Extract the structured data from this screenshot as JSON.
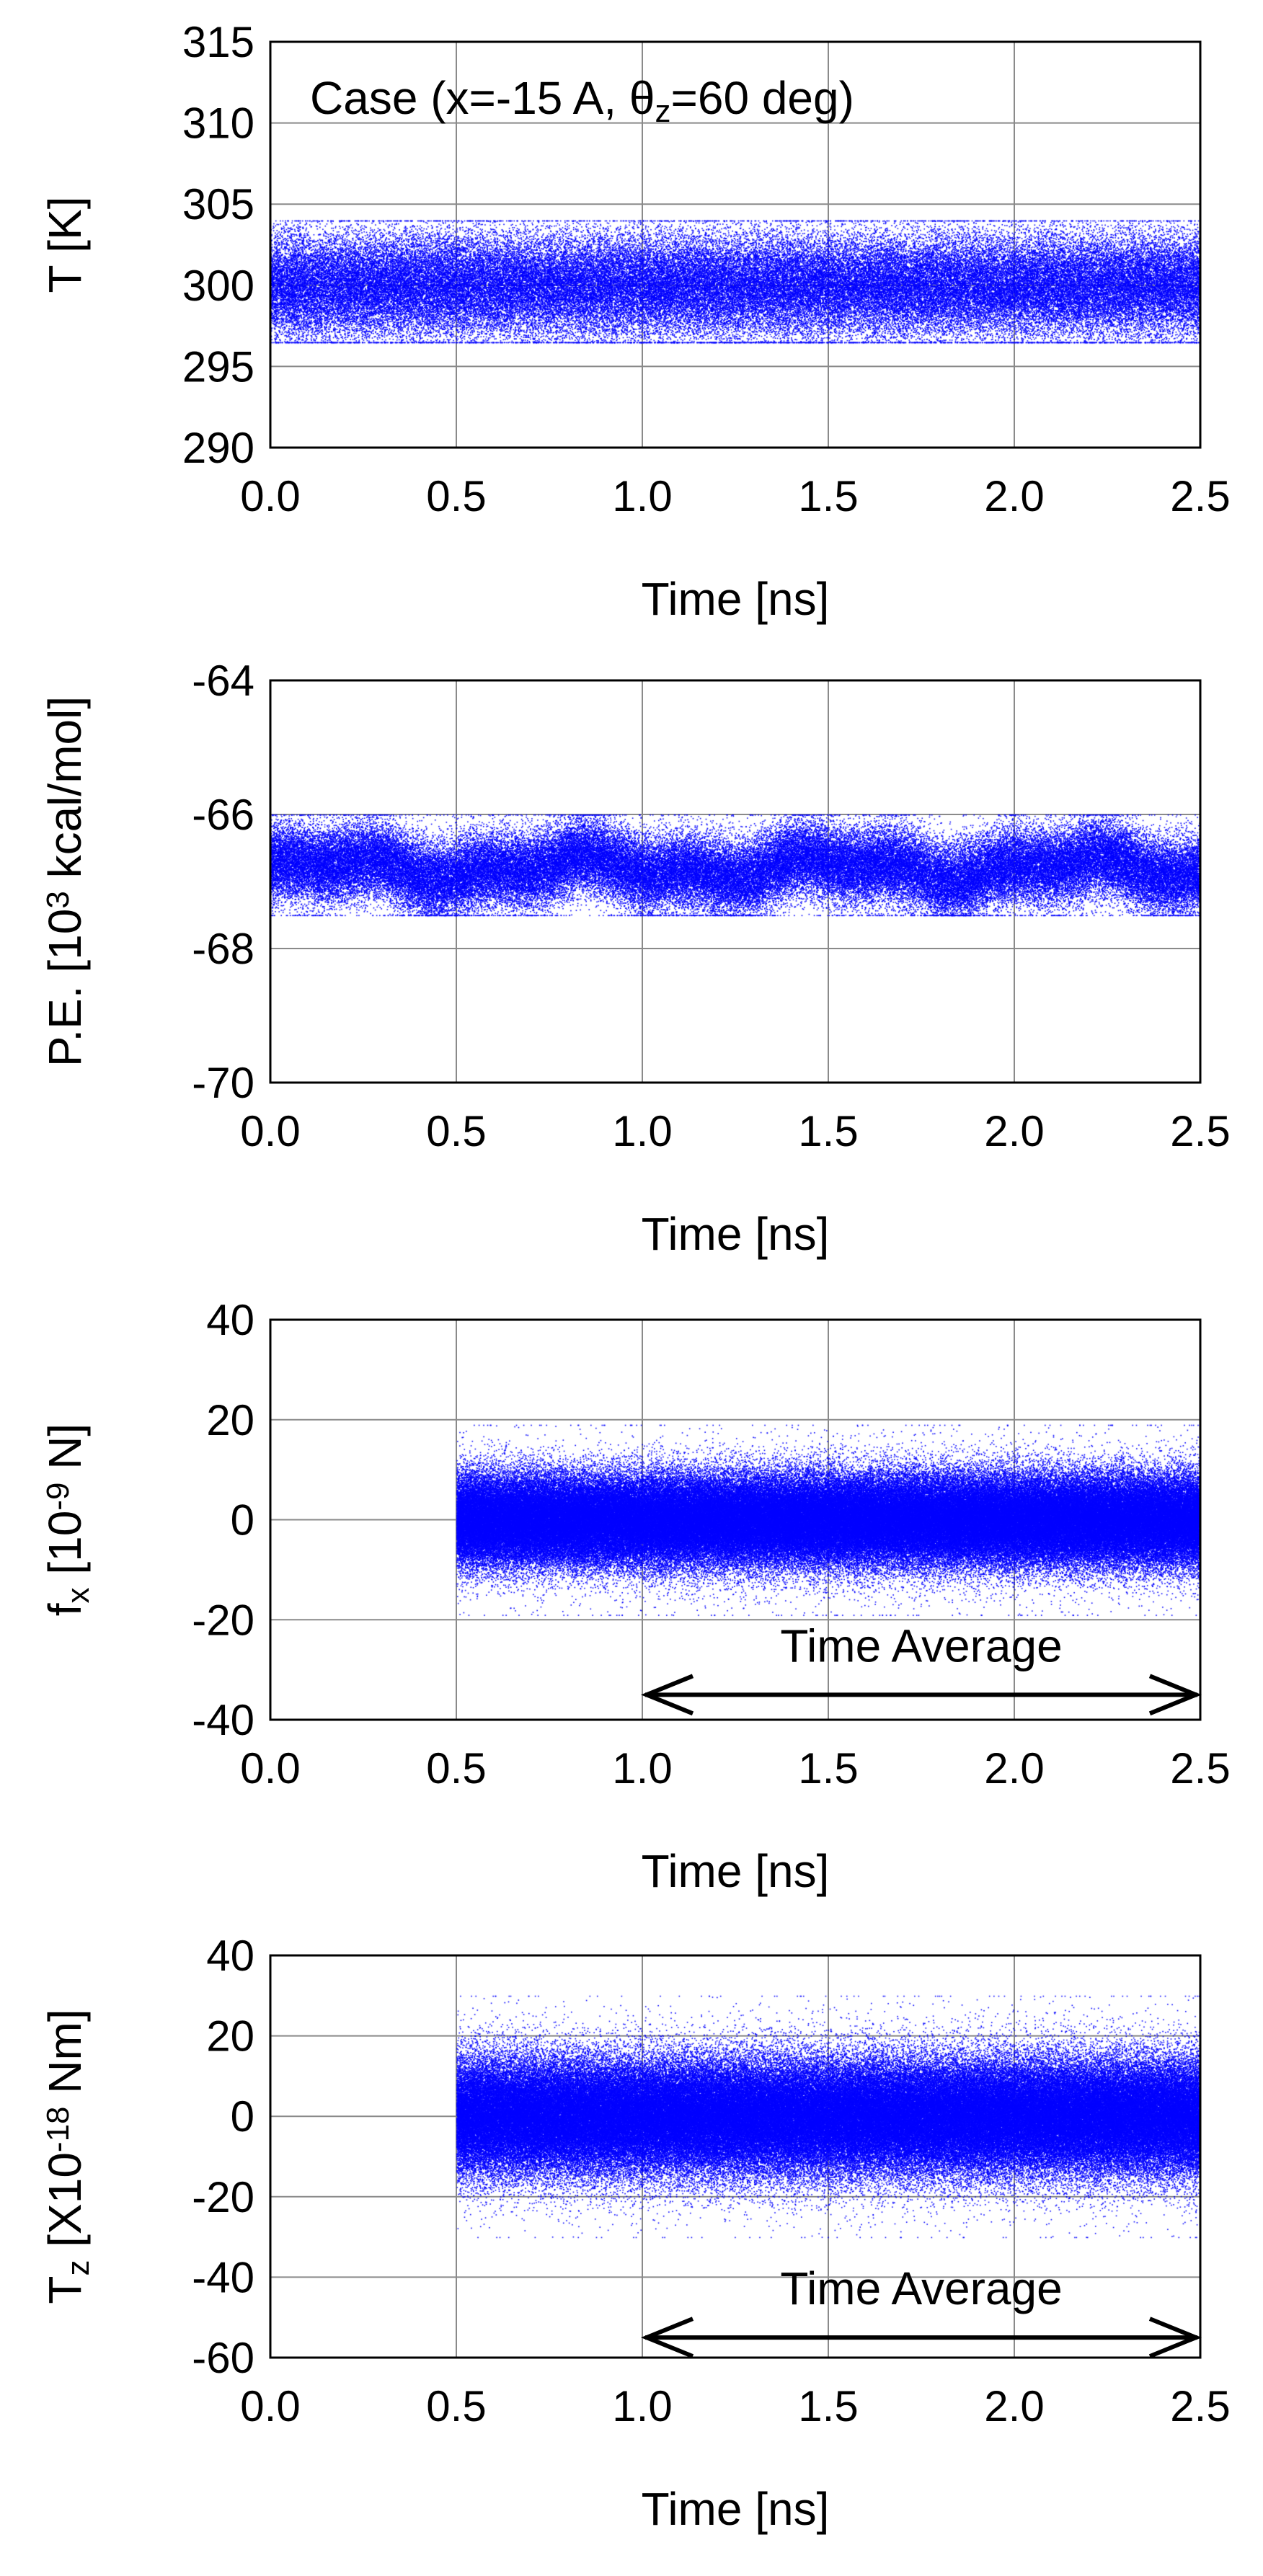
{
  "figure_caption": "Case (x=-15 A, θz=60 deg)",
  "colors": {
    "series": "#0000ff",
    "grid": "#8a8a8a",
    "axis": "#000000"
  },
  "chart_data": [
    {
      "id": "temperature",
      "type": "scatter",
      "title": "Case (x=-15 A, θz=60 deg)",
      "title_parts": {
        "pre": "Case (x=-15 A, θ",
        "sub": "z",
        "post": "=60 deg)"
      },
      "xlabel": "Time  [ns]",
      "ylabel": "T  [K]",
      "ylabel_parts": {
        "pre": "T  [K]",
        "sup": "",
        "sub": "",
        "post": ""
      },
      "xlim": [
        0.0,
        2.5
      ],
      "ylim": [
        290,
        315
      ],
      "xticks": [
        "0.0",
        "0.5",
        "1.0",
        "1.5",
        "2.0",
        "2.5"
      ],
      "yticks": [
        "290",
        "295",
        "300",
        "305",
        "310",
        "315"
      ],
      "series": [
        {
          "name": "T",
          "x_start": 0.0,
          "x_end": 2.5,
          "mean": 300,
          "spread": 1.6,
          "extreme_low": 296.5,
          "extreme_high": 304.0
        }
      ],
      "annotation": null
    },
    {
      "id": "potential-energy",
      "type": "scatter",
      "xlabel": "Time  [ns]",
      "ylabel": "P.E.  [10³ kcal/mol]",
      "ylabel_parts": {
        "pre": "P.E.  [10",
        "sup": "3",
        "sub": "",
        "post": " kcal/mol]"
      },
      "xlim": [
        0.0,
        2.5
      ],
      "ylim": [
        -70,
        -64
      ],
      "xticks": [
        "0.0",
        "0.5",
        "1.0",
        "1.5",
        "2.0",
        "2.5"
      ],
      "yticks": [
        "-70",
        "-68",
        "-66",
        "-64"
      ],
      "series": [
        {
          "name": "P.E.",
          "x_start": 0.0,
          "x_end": 2.5,
          "mean": -66.8,
          "spread": 0.28,
          "extreme_low": -67.5,
          "extreme_high": -66.0
        }
      ],
      "annotation": null
    },
    {
      "id": "force-x",
      "type": "scatter",
      "xlabel": "Time  [ns]",
      "ylabel": "fx  [10⁻⁹ N]",
      "ylabel_parts": {
        "pre": "f",
        "sub": "x",
        "mid": "  [10",
        "sup": "-9",
        "post": " N]"
      },
      "xlim": [
        0.0,
        2.5
      ],
      "ylim": [
        -40,
        40
      ],
      "xticks": [
        "0.0",
        "0.5",
        "1.0",
        "1.5",
        "2.0",
        "2.5"
      ],
      "yticks": [
        "-40",
        "-20",
        "0",
        "20",
        "40"
      ],
      "series": [
        {
          "name": "fx",
          "x_start": 0.5,
          "x_end": 2.5,
          "mean": 0,
          "spread": 4.5,
          "extreme_low": -19,
          "extreme_high": 19
        }
      ],
      "annotation": {
        "text": "Time Average",
        "x_start": 1.0,
        "x_end": 2.5,
        "y": -35
      }
    },
    {
      "id": "torque-z",
      "type": "scatter",
      "xlabel": "Time  [ns]",
      "ylabel": "Tz  [X10⁻¹⁸ Nm]",
      "ylabel_parts": {
        "pre": "T",
        "sub": "z",
        "mid": "  [X10",
        "sup": "-18",
        "post": " Nm]"
      },
      "xlim": [
        0.0,
        2.5
      ],
      "ylim": [
        -60,
        40
      ],
      "xticks": [
        "0.0",
        "0.5",
        "1.0",
        "1.5",
        "2.0",
        "2.5"
      ],
      "yticks": [
        "-60",
        "-40",
        "-20",
        "0",
        "20",
        "40"
      ],
      "series": [
        {
          "name": "Tz",
          "x_start": 0.5,
          "x_end": 2.5,
          "mean": 0,
          "spread": 7.0,
          "extreme_low": -30,
          "extreme_high": 30
        }
      ],
      "annotation": {
        "text": "Time Average",
        "x_start": 1.0,
        "x_end": 2.5,
        "y": -55
      }
    }
  ]
}
